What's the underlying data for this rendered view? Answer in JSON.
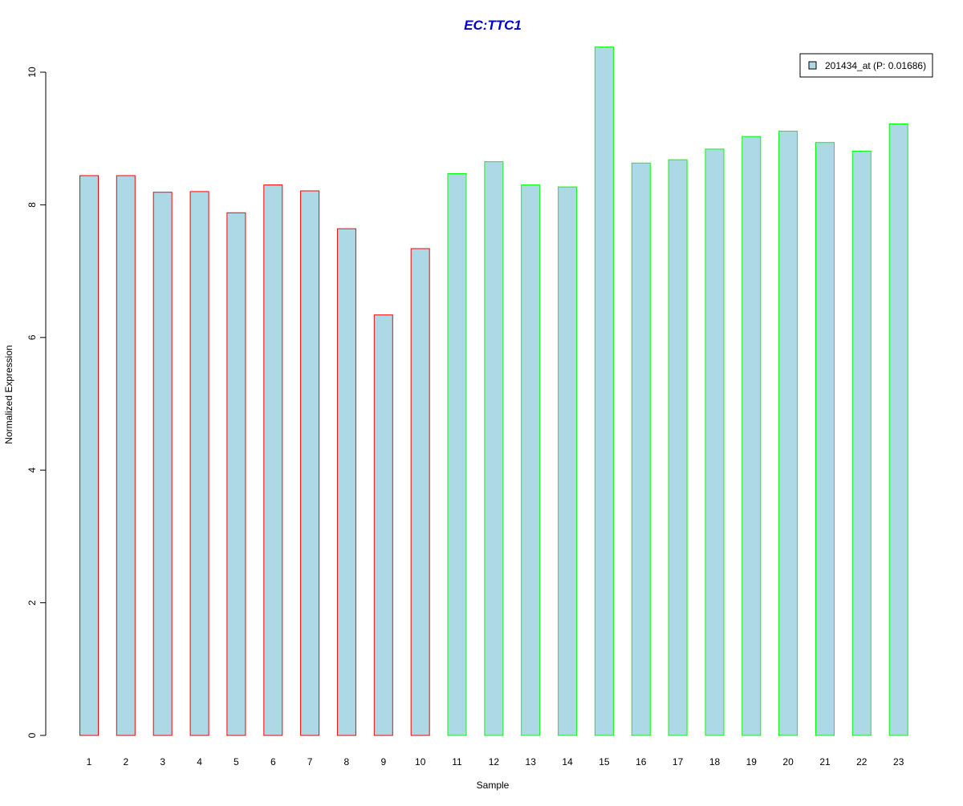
{
  "colors": {
    "title": "#0000CC",
    "bar_fill": "#ADD8E6",
    "group1_border": "#FF0000",
    "group2_border": "#00FF00",
    "axis": "#000000",
    "legend_border": "#000000"
  },
  "chart_data": {
    "type": "bar",
    "title": "EC:TTC1",
    "xlabel": "Sample",
    "ylabel": "Normalized Expression",
    "ylim": [
      0,
      10.4
    ],
    "yticks": [
      "0",
      "2",
      "4",
      "6",
      "8",
      "10"
    ],
    "grid": false,
    "legend_position": "top-right",
    "categories": [
      "1",
      "2",
      "3",
      "4",
      "5",
      "6",
      "7",
      "8",
      "9",
      "10",
      "11",
      "12",
      "13",
      "14",
      "15",
      "16",
      "17",
      "18",
      "19",
      "20",
      "21",
      "22",
      "23"
    ],
    "series": [
      {
        "name": "201434_at (P: 0.01686)",
        "values": [
          8.44,
          8.44,
          8.19,
          8.2,
          7.88,
          8.3,
          8.21,
          7.64,
          6.34,
          7.34,
          8.47,
          8.65,
          8.3,
          8.27,
          10.38,
          8.63,
          8.68,
          8.84,
          9.03,
          9.11,
          8.94,
          8.81,
          9.22
        ]
      }
    ],
    "bar_border_groups": [
      "red",
      "red",
      "red",
      "red",
      "red",
      "red",
      "red",
      "red",
      "red",
      "red",
      "green",
      "green",
      "green",
      "green",
      "green",
      "green",
      "green",
      "green",
      "green",
      "green",
      "green",
      "green",
      "green"
    ]
  }
}
